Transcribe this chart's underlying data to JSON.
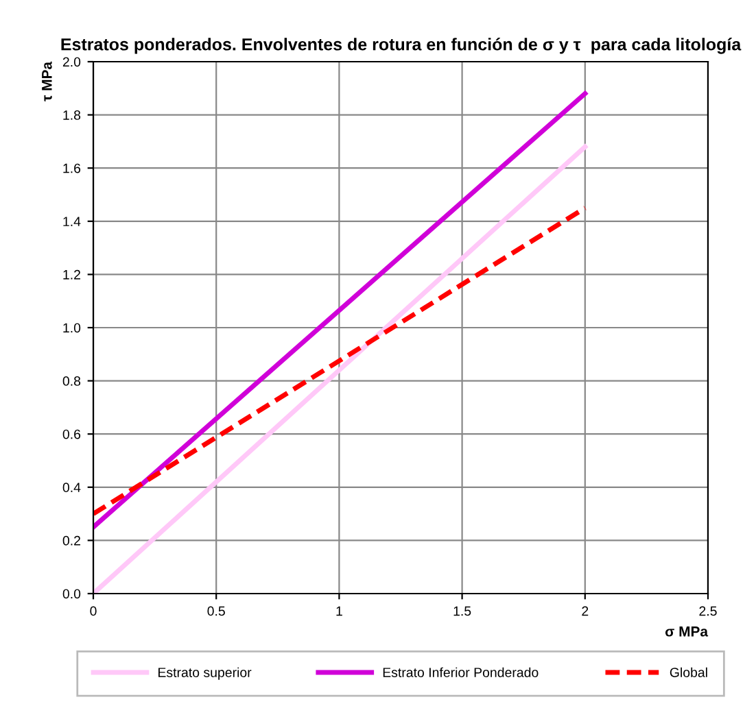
{
  "chart_data": {
    "type": "line",
    "title": "Estratos ponderados. Envolventes de rotura en función de σ y τ  para cada litología",
    "xlabel": "σ MPa",
    "ylabel": "τ MPa",
    "x": [
      0,
      2
    ],
    "series": [
      {
        "name": "Estrato superior",
        "color": "#ffc8f8",
        "values": [
          0,
          1.68
        ]
      },
      {
        "name": "Estrato Inferior Ponderado",
        "color": "#d000d8",
        "values": [
          0.25,
          1.88
        ]
      },
      {
        "name": "Global",
        "color": "#ff0000",
        "values": [
          0.3,
          1.45
        ],
        "line_style": "dashed"
      }
    ],
    "xlim": [
      0,
      2.5
    ],
    "xticks": [
      0,
      0.5,
      1,
      1.5,
      2,
      2.5
    ],
    "ylim": [
      0,
      2.0
    ],
    "yticks": [
      {
        "value": 0,
        "label": "0.0"
      },
      {
        "value": 0.2,
        "label": "0.2"
      },
      {
        "value": 0.4,
        "label": "0.4"
      },
      {
        "value": 0.6,
        "label": "0.6"
      },
      {
        "value": 0.8,
        "label": "0.8"
      },
      {
        "value": 1.0,
        "label": "1.0"
      },
      {
        "value": 1.2,
        "label": "1.2"
      },
      {
        "value": 1.4,
        "label": "1.4"
      },
      {
        "value": 1.6,
        "label": "1.6"
      },
      {
        "value": 1.8,
        "label": "1.8"
      },
      {
        "value": 2.0,
        "label": "2.0"
      }
    ],
    "grid": true,
    "legend": "bottom",
    "marker": "none",
    "line_style": "solid"
  }
}
